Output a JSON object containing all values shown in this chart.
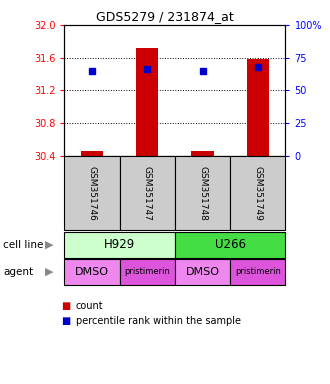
{
  "title": "GDS5279 / 231874_at",
  "samples": [
    "GSM351746",
    "GSM351747",
    "GSM351748",
    "GSM351749"
  ],
  "count_values": [
    30.46,
    31.72,
    30.46,
    31.58
  ],
  "percentile_values": [
    31.44,
    31.46,
    31.44,
    31.48
  ],
  "ymin": 30.4,
  "ymax": 32.0,
  "yticks_left": [
    30.4,
    30.8,
    31.2,
    31.6,
    32.0
  ],
  "yticks_right_pct": [
    0,
    25,
    50,
    75,
    100
  ],
  "cell_line_groups": [
    {
      "label": "H929",
      "cols": [
        0,
        1
      ],
      "color": "#ccffcc"
    },
    {
      "label": "U266",
      "cols": [
        2,
        3
      ],
      "color": "#44dd44"
    }
  ],
  "agent_colors": [
    "#ee88ee",
    "#dd55dd",
    "#ee88ee",
    "#dd55dd"
  ],
  "agent_labels": [
    "DMSO",
    "pristimerin",
    "DMSO",
    "pristimerin"
  ],
  "agent_fontsizes": [
    8,
    6,
    8,
    6
  ],
  "count_color": "#cc0000",
  "percentile_color": "#0000cc",
  "bar_width": 0.4,
  "background_color": "#ffffff",
  "label_cell_line": "cell line",
  "label_agent": "agent",
  "legend_count": "count",
  "legend_percentile": "percentile rank within the sample",
  "sample_box_color": "#cccccc",
  "left_axis_color": "red",
  "right_axis_color": "blue"
}
